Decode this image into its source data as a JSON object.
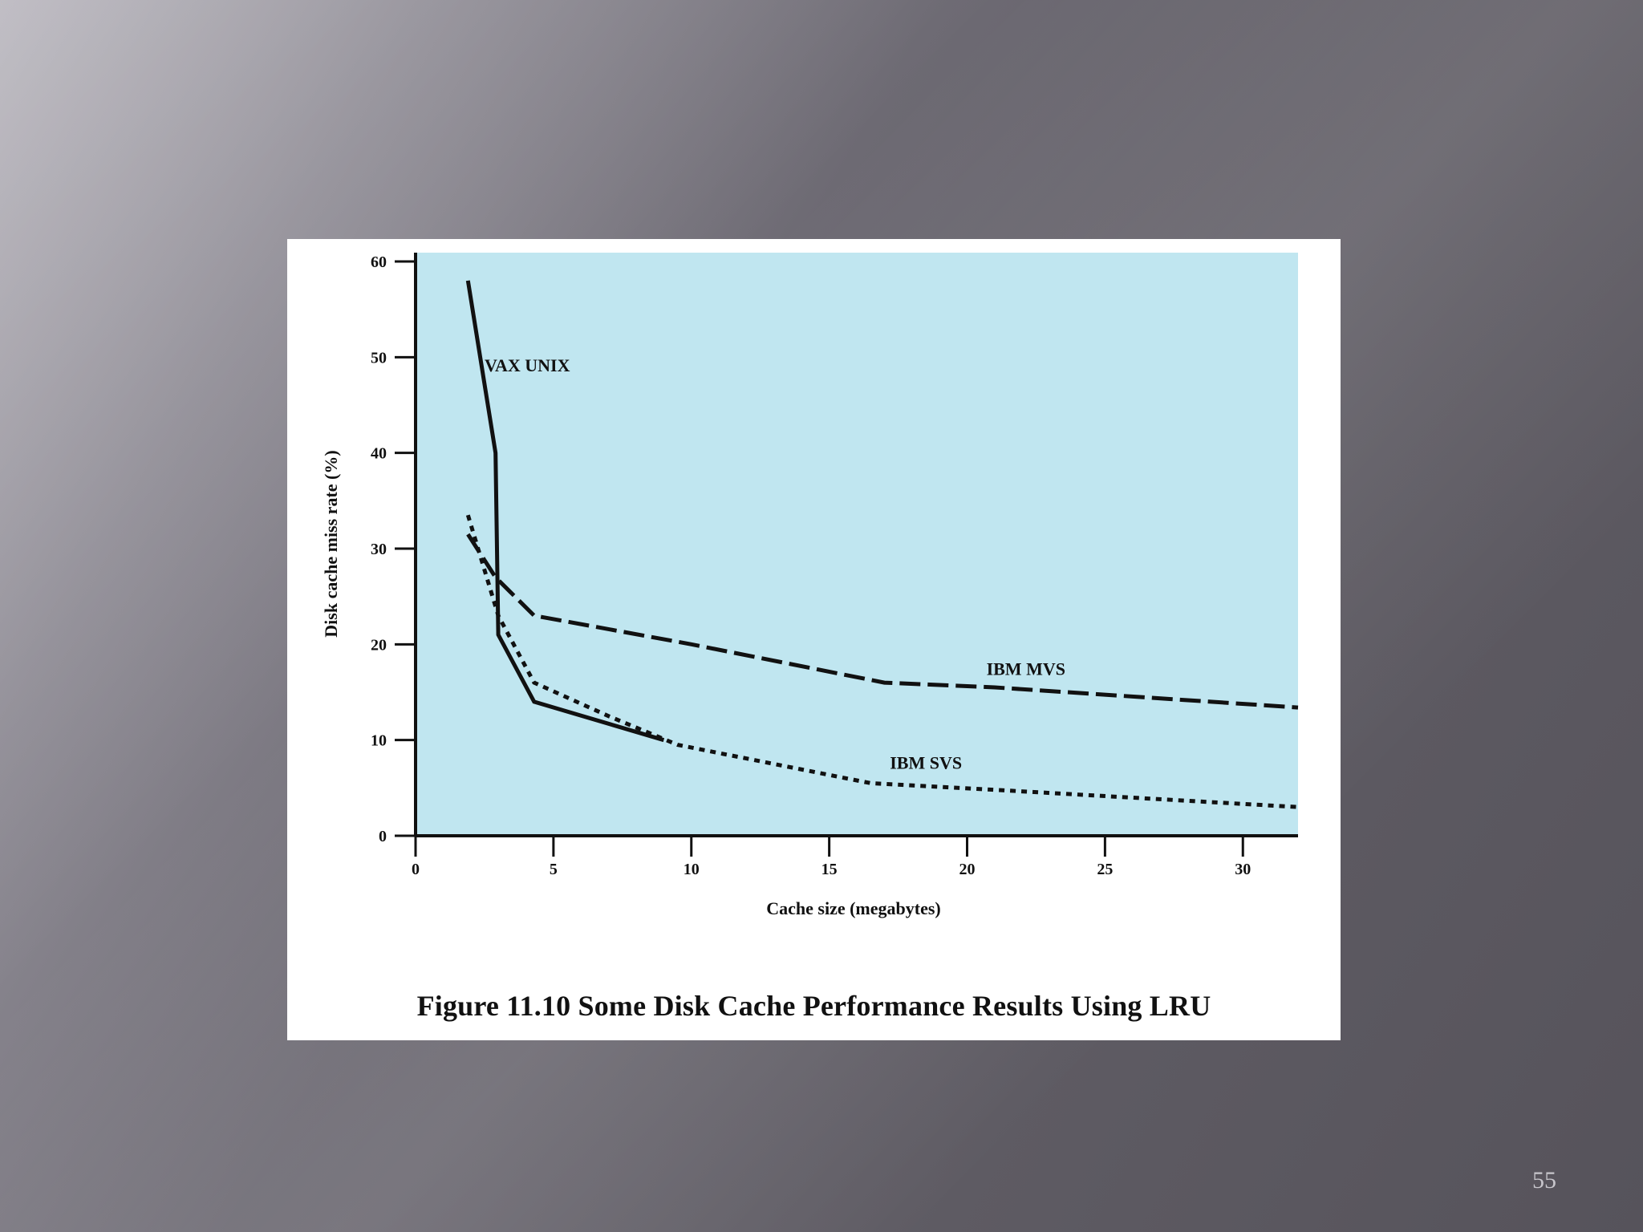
{
  "slide": {
    "page_number": "55",
    "caption": "Figure 11.10  Some Disk Cache Performance Results Using LRU"
  },
  "colors": {
    "plot_background": "#c0e6f0",
    "line": "#111111",
    "figure_background": "#ffffff"
  },
  "chart_data": {
    "type": "line",
    "title": "",
    "xlabel": "Cache size (megabytes)",
    "ylabel": "Disk cache miss rate (%)",
    "xlim": [
      0,
      32
    ],
    "ylim": [
      0,
      60
    ],
    "x_ticks": [
      0,
      5,
      10,
      15,
      20,
      25,
      30
    ],
    "y_ticks": [
      0,
      10,
      20,
      30,
      40,
      50,
      60
    ],
    "grid": false,
    "legend": "inline labels",
    "series": [
      {
        "name": "VAX UNIX",
        "style": "solid",
        "points": [
          [
            1.9,
            58
          ],
          [
            2.9,
            40
          ],
          [
            3.0,
            21
          ],
          [
            4.3,
            14
          ],
          [
            9.0,
            10
          ]
        ]
      },
      {
        "name": "IBM MVS",
        "style": "dashed",
        "points": [
          [
            1.9,
            31.5
          ],
          [
            2.9,
            27
          ],
          [
            4.3,
            23
          ],
          [
            10,
            20
          ],
          [
            17,
            16
          ],
          [
            21,
            15.5
          ],
          [
            32,
            13.4
          ]
        ]
      },
      {
        "name": "IBM SVS",
        "style": "dotted",
        "points": [
          [
            1.9,
            33.5
          ],
          [
            3.0,
            23
          ],
          [
            4.3,
            16
          ],
          [
            7,
            12.5
          ],
          [
            9.5,
            9.5
          ],
          [
            16.5,
            5.5
          ],
          [
            21,
            4.8
          ],
          [
            32,
            3
          ]
        ]
      }
    ]
  }
}
